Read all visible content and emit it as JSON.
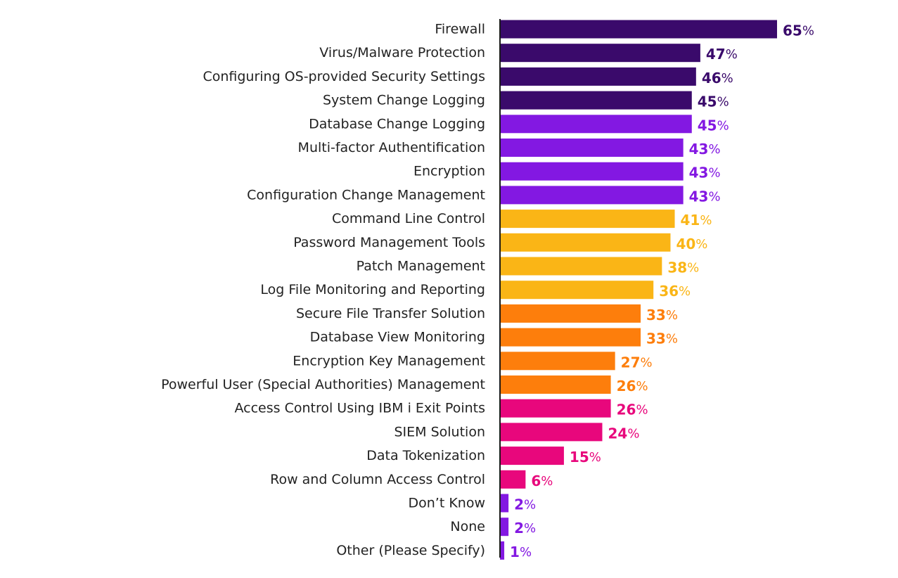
{
  "colors": {
    "dark_purple": "#3a0a6b",
    "purple": "#8318e2",
    "yellow": "#fab516",
    "orange": "#fd7e0c",
    "pink": "#e8077c",
    "axis": "#1a1a1a",
    "label_text": "#222222"
  },
  "chart_data": {
    "type": "bar",
    "orientation": "horizontal",
    "title": "",
    "xlabel": "",
    "ylabel": "",
    "value_suffix": "%",
    "grid": false,
    "legend": "none",
    "xlim": [
      0,
      65
    ],
    "categories": [
      "Firewall",
      "Virus/Malware Protection",
      "Configuring OS-provided Security Settings",
      "System Change Logging",
      "Database Change Logging",
      "Multi-factor Authentification",
      "Encryption",
      "Configuration Change Management",
      "Command Line Control",
      "Password Management Tools",
      "Patch Management",
      "Log File Monitoring and Reporting",
      "Secure File Transfer Solution",
      "Database View Monitoring",
      "Encryption Key Management",
      "Powerful User (Special Authorities) Management",
      "Access Control Using IBM i Exit Points",
      "SIEM Solution",
      "Data Tokenization",
      "Row and Column Access Control",
      "Don’t Know",
      "None",
      "Other (Please Specify)"
    ],
    "values": [
      65,
      47,
      46,
      45,
      45,
      43,
      43,
      43,
      41,
      40,
      38,
      36,
      33,
      33,
      27,
      26,
      26,
      24,
      15,
      6,
      2,
      2,
      1
    ],
    "bar_colors": [
      "#3a0a6b",
      "#3a0a6b",
      "#3a0a6b",
      "#3a0a6b",
      "#8318e2",
      "#8318e2",
      "#8318e2",
      "#8318e2",
      "#fab516",
      "#fab516",
      "#fab516",
      "#fab516",
      "#fd7e0c",
      "#fd7e0c",
      "#fd7e0c",
      "#fd7e0c",
      "#e8077c",
      "#e8077c",
      "#e8077c",
      "#e8077c",
      "#8318e2",
      "#8318e2",
      "#8318e2"
    ]
  }
}
